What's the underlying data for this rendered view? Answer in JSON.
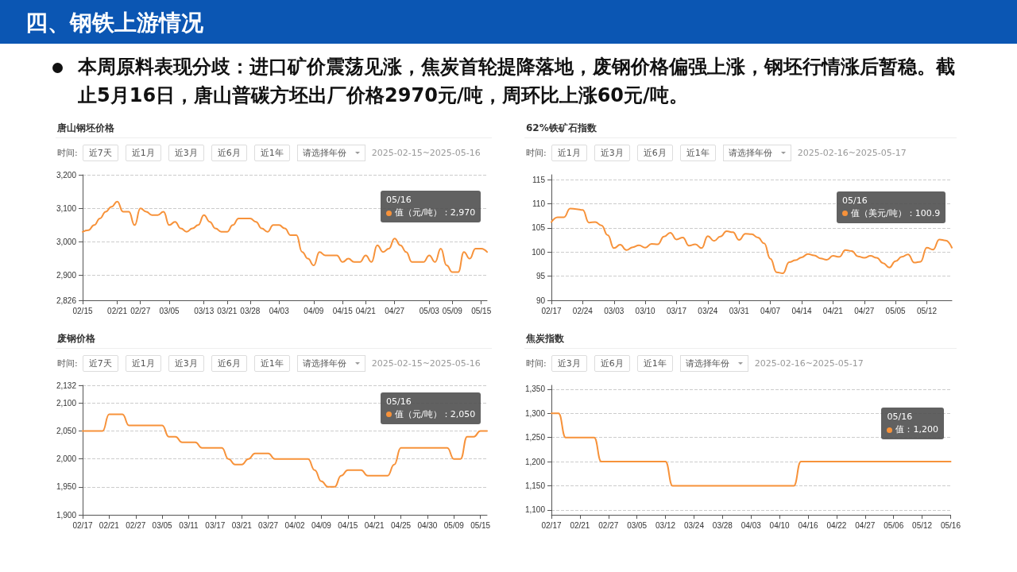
{
  "chart_data": [
    {
      "type": "other",
      "title": "四、钢铁上游情况",
      "annotations": [
        "本周原料表现分歧：进口矿价震荡见涨，焦炭首轮提降落地，废钢价格偏强上涨，钢坯行情涨后暂稳。截止5月16日，唐山普碳方坯出厂价格2970元/吨，周环比上涨60元/吨。"
      ]
    },
    {
      "type": "line",
      "title": "唐山钢坯价格",
      "color": "#f7923a",
      "line_style": "solid",
      "grid": "y",
      "categories": [
        "02/15",
        null,
        null,
        null,
        null,
        null,
        "02/21",
        null,
        null,
        null,
        "02/27",
        null,
        null,
        null,
        null,
        "03/05",
        null,
        null,
        null,
        null,
        null,
        "03/13",
        null,
        null,
        null,
        "03/21",
        null,
        null,
        null,
        "03/28",
        null,
        null,
        null,
        null,
        "04/03",
        null,
        null,
        null,
        null,
        null,
        "04/09",
        null,
        null,
        null,
        null,
        "04/15",
        null,
        null,
        null,
        "04/21",
        null,
        null,
        null,
        null,
        "04/27",
        null,
        null,
        null,
        null,
        null,
        "05/03",
        null,
        null,
        null,
        "05/09",
        null,
        null,
        null,
        null,
        "05/15",
        null
      ],
      "values": [
        3030,
        3035,
        3050,
        3070,
        3090,
        3105,
        3120,
        3090,
        3090,
        3050,
        3100,
        3090,
        3080,
        3080,
        3090,
        3050,
        3060,
        3040,
        3030,
        3040,
        3050,
        3080,
        3060,
        3040,
        3030,
        3030,
        3050,
        3070,
        3070,
        3070,
        3060,
        3040,
        3030,
        3050,
        3050,
        3040,
        3020,
        3020,
        2970,
        2950,
        2930,
        2970,
        2960,
        2960,
        2960,
        2940,
        2950,
        2940,
        2940,
        2960,
        2940,
        2990,
        2970,
        2980,
        3010,
        2990,
        2970,
        2940,
        2940,
        2940,
        2960,
        2940,
        2980,
        2930,
        2910,
        2910,
        2970,
        2950,
        2980,
        2980,
        2970
      ],
      "ylim": [
        2826,
        3200
      ],
      "yticks": [
        {
          "value": 2826,
          "label": "2,826"
        },
        {
          "value": 2900,
          "label": "2,900"
        },
        {
          "value": 3000,
          "label": "3,000"
        },
        {
          "value": 3100,
          "label": "3,100"
        },
        {
          "value": 3200,
          "label": "3,200"
        }
      ],
      "annotations": [
        "时间:",
        "近7天",
        "近1月",
        "近3月",
        "近6月",
        "近1年",
        "请选择年份",
        "2025-02-15~2025-05-16",
        "05/16\n值（元/吨）：2,970"
      ]
    },
    {
      "type": "line",
      "title": "62%铁矿石指数",
      "color": "#f7923a",
      "line_style": "solid",
      "grid": "y",
      "categories": [
        "02/17",
        null,
        null,
        null,
        null,
        "02/24",
        null,
        null,
        null,
        null,
        "03/03",
        null,
        null,
        null,
        null,
        "03/10",
        null,
        null,
        null,
        null,
        "03/17",
        null,
        null,
        null,
        null,
        "03/24",
        null,
        null,
        null,
        null,
        "03/31",
        null,
        null,
        null,
        null,
        "04/07",
        null,
        null,
        null,
        null,
        "04/14",
        null,
        null,
        null,
        null,
        "04/21",
        null,
        null,
        null,
        null,
        "04/27",
        null,
        null,
        null,
        null,
        "05/05",
        null,
        null,
        null,
        null,
        "05/12",
        null,
        null,
        null,
        null
      ],
      "values": [
        106.2,
        107.2,
        107.2,
        109.0,
        108.9,
        108.7,
        106.1,
        106.2,
        105.5,
        103.5,
        100.8,
        101.5,
        100.4,
        101.0,
        101.4,
        100.9,
        101.7,
        101.6,
        103.2,
        104.0,
        102.6,
        103.0,
        101.3,
        101.6,
        100.8,
        103.3,
        102.3,
        103.2,
        104.3,
        104.1,
        102.5,
        103.8,
        103.7,
        103.0,
        101.8,
        98.6,
        95.8,
        95.6,
        97.9,
        98.3,
        98.9,
        99.6,
        99.3,
        98.7,
        98.4,
        99.2,
        99.0,
        100.4,
        100.2,
        99.1,
        98.8,
        99.2,
        98.8,
        97.7,
        96.8,
        98.1,
        99.0,
        99.5,
        97.8,
        98.0,
        100.9,
        100.5,
        102.6,
        102.4,
        100.9
      ],
      "ylim": [
        90,
        116
      ],
      "yticks": [
        90,
        95,
        100,
        105,
        110,
        115
      ],
      "annotations": [
        "时间:",
        "近1月",
        "近3月",
        "近6月",
        "近1年",
        "请选择年份",
        "2025-02-16~2025-05-17",
        "05/16\n值（美元/吨）：100.9"
      ]
    },
    {
      "type": "line",
      "title": "废钢价格",
      "color": "#f7923a",
      "line_style": "solid",
      "grid": "y",
      "categories": [
        "02/17",
        null,
        null,
        null,
        "02/21",
        null,
        null,
        null,
        "02/27",
        null,
        null,
        null,
        "03/05",
        null,
        null,
        null,
        "03/11",
        null,
        null,
        null,
        "03/17",
        null,
        null,
        null,
        "03/21",
        null,
        null,
        null,
        "03/27",
        null,
        null,
        null,
        "04/02",
        null,
        null,
        null,
        "04/09",
        null,
        null,
        null,
        "04/15",
        null,
        null,
        null,
        "04/21",
        null,
        null,
        null,
        "04/25",
        null,
        null,
        null,
        "04/30",
        null,
        null,
        null,
        "05/09",
        null,
        null,
        null,
        "05/15",
        null
      ],
      "values": [
        2050,
        2050,
        2050,
        2050,
        2080,
        2080,
        2080,
        2060,
        2060,
        2060,
        2060,
        2060,
        2060,
        2040,
        2040,
        2030,
        2030,
        2030,
        2020,
        2020,
        2020,
        2020,
        2000,
        1990,
        1990,
        2000,
        2010,
        2010,
        2010,
        2000,
        2000,
        2000,
        2000,
        2000,
        2000,
        1980,
        1960,
        1950,
        1950,
        1970,
        1980,
        1980,
        1980,
        1970,
        1970,
        1970,
        1970,
        1990,
        2020,
        2020,
        2020,
        2020,
        2020,
        2020,
        2020,
        2020,
        2000,
        2000,
        2040,
        2040,
        2050,
        2050
      ],
      "ylim": [
        1900,
        2132
      ],
      "yticks": [
        {
          "value": 1900,
          "label": "1,900"
        },
        {
          "value": 1950,
          "label": "1,950"
        },
        {
          "value": 2000,
          "label": "2,000"
        },
        {
          "value": 2050,
          "label": "2,050"
        },
        {
          "value": 2100,
          "label": "2,100"
        },
        {
          "value": 2132,
          "label": "2,132"
        }
      ],
      "annotations": [
        "时间:",
        "近7天",
        "近1月",
        "近3月",
        "近6月",
        "近1年",
        "请选择年份",
        "2025-02-15~2025-05-16",
        "05/16\n值（元/吨）：2,050"
      ]
    },
    {
      "type": "line",
      "title": "焦炭指数",
      "color": "#f7923a",
      "line_style": "solid",
      "grid": "y",
      "categories": [
        "02/17",
        null,
        null,
        null,
        "02/21",
        null,
        null,
        null,
        "02/27",
        null,
        null,
        null,
        "03/05",
        null,
        null,
        null,
        "03/12",
        null,
        null,
        null,
        "03/24",
        null,
        null,
        null,
        "03/28",
        null,
        null,
        null,
        "04/03",
        null,
        null,
        null,
        "04/10",
        null,
        null,
        null,
        "04/16",
        null,
        null,
        null,
        "04/22",
        null,
        null,
        null,
        "04/27",
        null,
        null,
        null,
        "05/06",
        null,
        null,
        null,
        "05/12",
        null,
        null,
        null,
        "05/16"
      ],
      "values": [
        1300,
        1300,
        1250,
        1250,
        1250,
        1250,
        1250,
        1200,
        1200,
        1200,
        1200,
        1200,
        1200,
        1200,
        1200,
        1200,
        1200,
        1150,
        1150,
        1150,
        1150,
        1150,
        1150,
        1150,
        1150,
        1150,
        1150,
        1150,
        1150,
        1150,
        1150,
        1150,
        1150,
        1150,
        1150,
        1200,
        1200,
        1200,
        1200,
        1200,
        1200,
        1200,
        1200,
        1200,
        1200,
        1200,
        1200,
        1200,
        1200,
        1200,
        1200,
        1200,
        1200,
        1200,
        1200,
        1200,
        1200
      ],
      "ylim": [
        1090,
        1358
      ],
      "yticks": [
        {
          "value": 1100,
          "label": "1,100"
        },
        {
          "value": 1150,
          "label": "1,150"
        },
        {
          "value": 1200,
          "label": "1,200"
        },
        {
          "value": 1250,
          "label": "1,250"
        },
        {
          "value": 1300,
          "label": "1,300"
        },
        {
          "value": 1350,
          "label": "1,350"
        }
      ],
      "annotations": [
        "时间:",
        "近3月",
        "近6月",
        "近1年",
        "请选择年份",
        "2025-02-16~2025-05-17",
        "05/16\n值：1,200"
      ]
    }
  ]
}
